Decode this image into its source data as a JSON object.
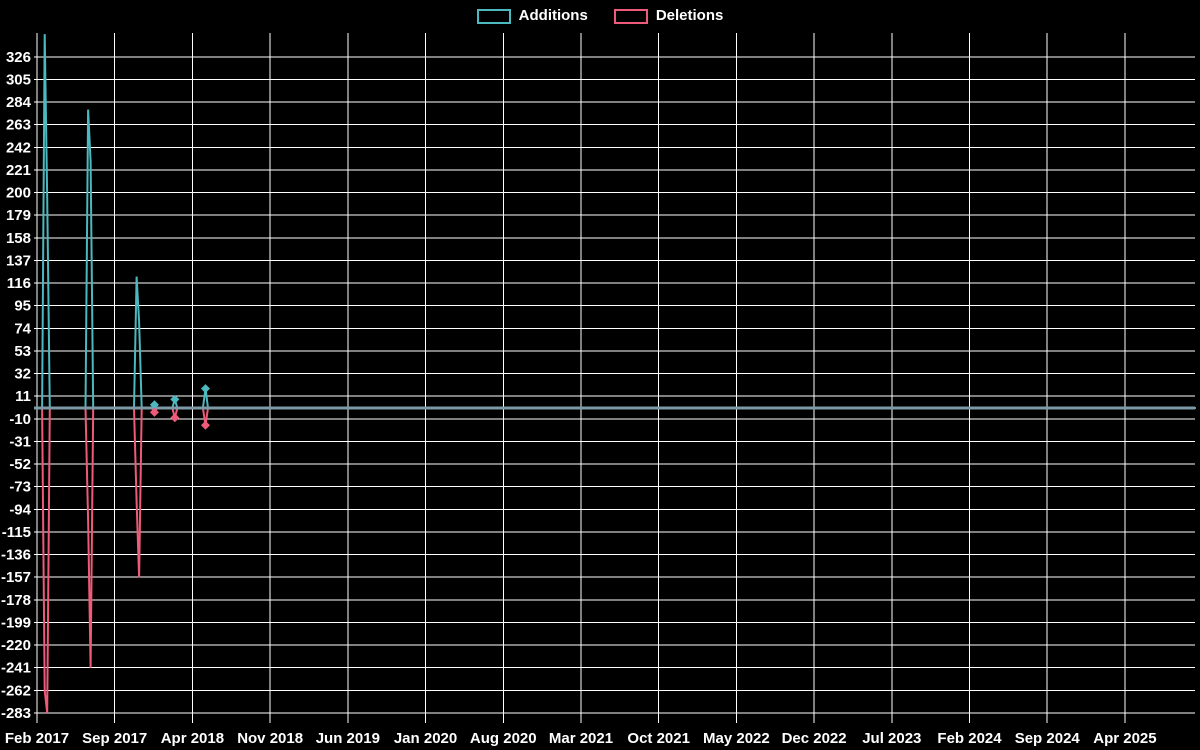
{
  "legend": {
    "additions_label": "Additions",
    "deletions_label": "Deletions"
  },
  "colors": {
    "background": "#000000",
    "grid": "#ffffff",
    "text": "#ffffff",
    "additions": "#4cb8bf",
    "deletions": "#ee5a7a",
    "zero_line": "#7e9aa6"
  },
  "chart_data": {
    "type": "line",
    "title": "",
    "xlabel": "",
    "ylabel": "",
    "grid": true,
    "legend_position": "top-center",
    "x_unit": "weeks since Feb 2017",
    "x_tick_labels": [
      "Feb 2017",
      "Sep 2017",
      "Apr 2018",
      "Nov 2018",
      "Jun 2019",
      "Jan 2020",
      "Aug 2020",
      "Mar 2021",
      "Oct 2021",
      "May 2022",
      "Dec 2022",
      "Jul 2023",
      "Feb 2024",
      "Sep 2024",
      "Apr 2025"
    ],
    "y_ticks": [
      326,
      305,
      284,
      263,
      242,
      221,
      200,
      179,
      158,
      137,
      116,
      95,
      74,
      53,
      32,
      11,
      -10,
      -31,
      -52,
      -73,
      -94,
      -115,
      -136,
      -157,
      -178,
      -199,
      -220,
      -241,
      -262,
      -283
    ],
    "ylim": [
      -288,
      348
    ],
    "series": [
      {
        "name": "Additions",
        "color": "#4cb8bf",
        "points": [
          [
            0,
            0
          ],
          [
            2,
            0
          ],
          [
            3,
            347
          ],
          [
            4,
            195
          ],
          [
            5,
            0
          ],
          [
            19,
            0
          ],
          [
            20,
            277
          ],
          [
            21,
            229
          ],
          [
            22,
            0
          ],
          [
            38,
            0
          ],
          [
            39,
            122
          ],
          [
            40,
            80
          ],
          [
            41,
            0
          ],
          [
            45,
            0
          ],
          [
            46,
            3
          ],
          [
            47,
            0
          ],
          [
            53,
            0
          ],
          [
            54,
            8
          ],
          [
            55,
            0
          ],
          [
            65,
            0
          ],
          [
            66,
            18
          ],
          [
            67,
            0
          ],
          [
            454,
            0
          ]
        ]
      },
      {
        "name": "Deletions",
        "color": "#ee5a7a",
        "points": [
          [
            0,
            0
          ],
          [
            2,
            0
          ],
          [
            3,
            -262
          ],
          [
            4,
            -283
          ],
          [
            5,
            0
          ],
          [
            19,
            0
          ],
          [
            20,
            -104
          ],
          [
            21,
            -241
          ],
          [
            22,
            0
          ],
          [
            38,
            0
          ],
          [
            39,
            -87
          ],
          [
            40,
            -157
          ],
          [
            41,
            0
          ],
          [
            45,
            0
          ],
          [
            46,
            -4
          ],
          [
            47,
            0
          ],
          [
            53,
            0
          ],
          [
            54,
            -9
          ],
          [
            55,
            0
          ],
          [
            65,
            0
          ],
          [
            66,
            -16
          ],
          [
            67,
            0
          ],
          [
            454,
            0
          ]
        ]
      }
    ]
  }
}
